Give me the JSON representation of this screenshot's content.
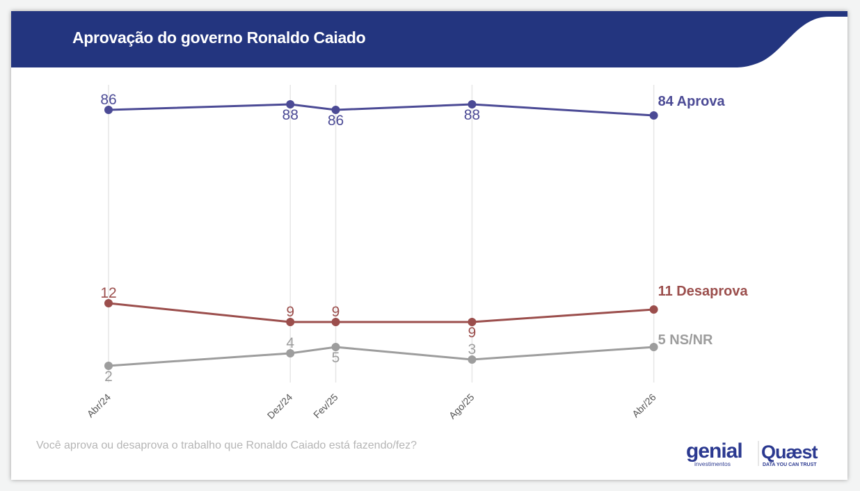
{
  "header": {
    "title": "Aprovação do governo Ronaldo Caiado",
    "color": "#23357f"
  },
  "footer": {
    "question": "Você aprova ou desaprova o trabalho que Ronaldo Caiado está fazendo/fez?"
  },
  "logos": {
    "genial": "genial",
    "genial_sub": "investimentos",
    "quaest": "Quaest",
    "quaest_sub": "DATA YOU CAN TRUST"
  },
  "chart_data": {
    "type": "line",
    "categories": [
      "Abr/24",
      "Dez/24",
      "Fev/25",
      "Ago/25",
      "Abr/26"
    ],
    "grid": "vertical lines at each survey date",
    "legend": "end-of-line labels",
    "series": [
      {
        "name": "Aprova",
        "end_label": "84 Aprova",
        "color": "#4b4a95",
        "values": [
          86,
          88,
          86,
          88,
          84
        ],
        "label_pos": [
          "above",
          "below",
          "below",
          "below",
          "none"
        ]
      },
      {
        "name": "Desaprova",
        "end_label": "11 Desaprova",
        "color": "#9b4e4c",
        "values": [
          12,
          9,
          9,
          9,
          11
        ],
        "label_pos": [
          "above",
          "above",
          "above",
          "below",
          "none"
        ]
      },
      {
        "name": "NS/NR",
        "end_label": "5 NS/NR",
        "color": "#9d9d9d",
        "values": [
          2,
          4,
          5,
          3,
          5
        ],
        "label_pos": [
          "below",
          "above",
          "below",
          "above",
          "none"
        ]
      }
    ]
  }
}
